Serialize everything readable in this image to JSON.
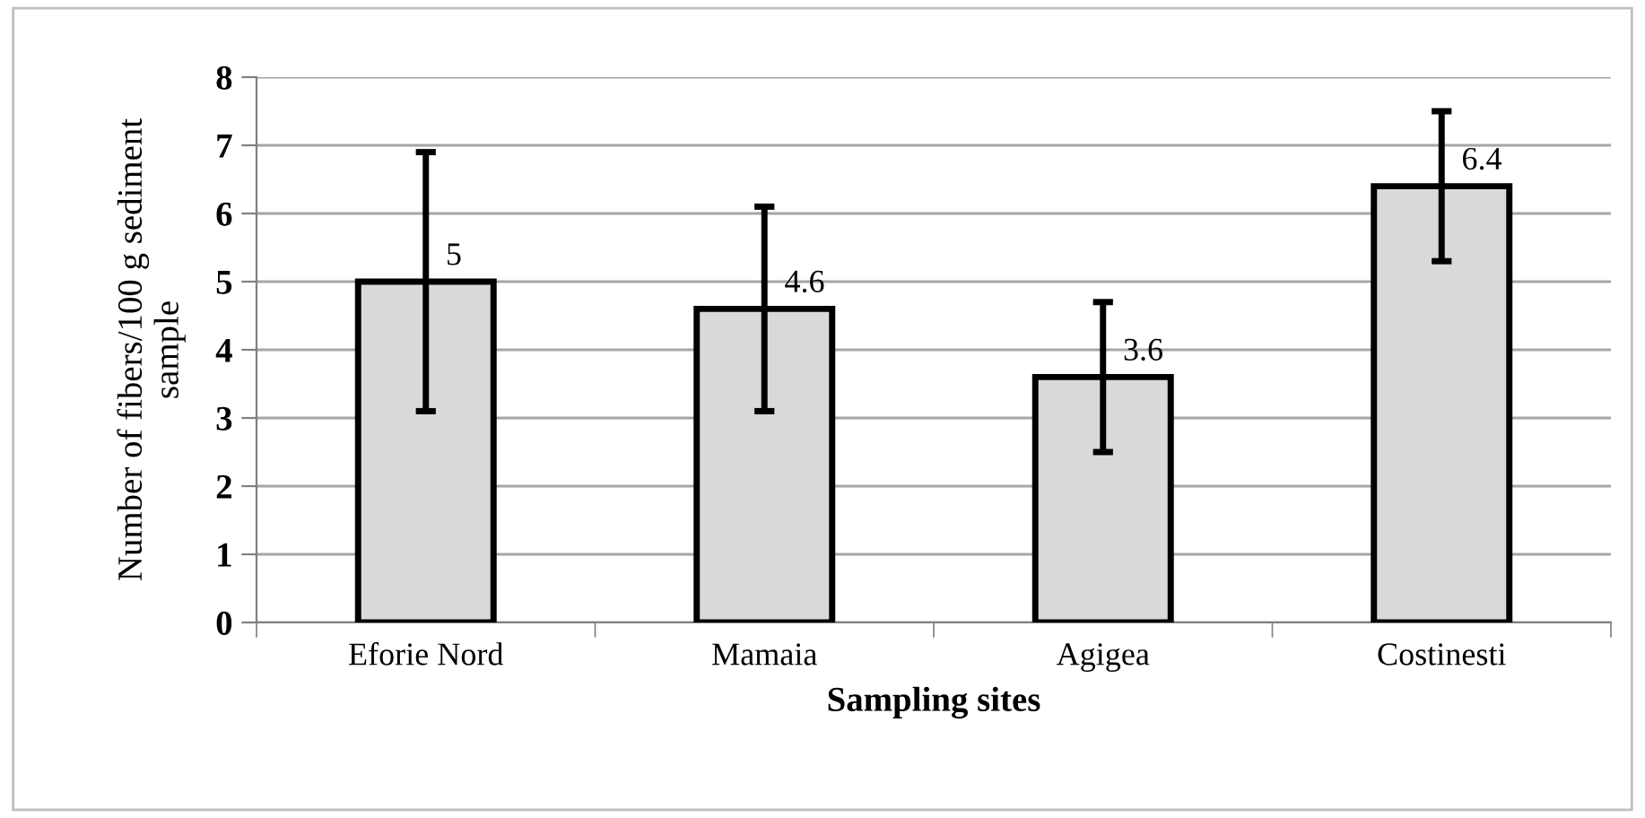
{
  "chart_data": {
    "type": "bar",
    "xlabel": "Sampling sites",
    "ylabel": "Number of fibers/100 g sediment\nsample",
    "categories": [
      "Eforie Nord",
      "Mamaia",
      "Agigea",
      "Costinesti"
    ],
    "values": [
      5,
      4.6,
      3.6,
      6.4
    ],
    "errors": [
      1.9,
      1.5,
      1.1,
      1.1
    ],
    "color": "#d9d9d9",
    "ylim": [
      0,
      8
    ],
    "yticks": [
      0,
      1,
      2,
      3,
      4,
      5,
      6,
      7,
      8
    ],
    "grid": "y",
    "data_labels": true
  }
}
